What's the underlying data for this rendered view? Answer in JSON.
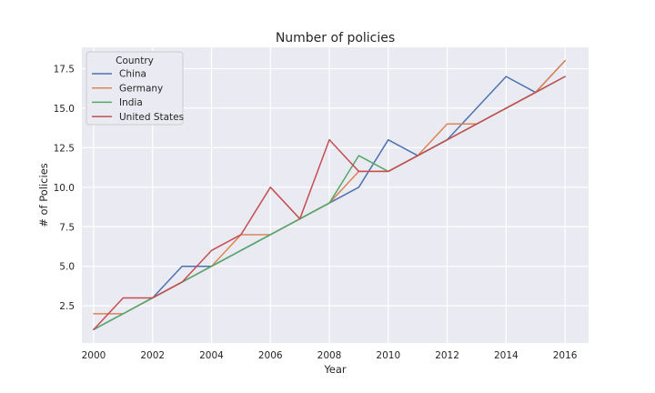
{
  "chart_data": {
    "type": "line",
    "title": "Number of policies",
    "xlabel": "Year",
    "ylabel": "# of Policies",
    "xlim": [
      1999.6,
      2016.8
    ],
    "ylim": [
      0.15,
      18.85
    ],
    "xticks": [
      2000,
      2002,
      2004,
      2006,
      2008,
      2010,
      2012,
      2014,
      2016
    ],
    "xtick_labels": [
      "2000",
      "2002",
      "2004",
      "2006",
      "2008",
      "2010",
      "2012",
      "2014",
      "2016"
    ],
    "yticks": [
      2.5,
      5.0,
      7.5,
      10.0,
      12.5,
      15.0,
      17.5
    ],
    "ytick_labels": [
      "2.5",
      "5.0",
      "7.5",
      "10.0",
      "12.5",
      "15.0",
      "17.5"
    ],
    "grid": true,
    "legend": {
      "title": "Country",
      "position": "top-left"
    },
    "x": [
      2000,
      2001,
      2002,
      2003,
      2004,
      2005,
      2006,
      2007,
      2008,
      2009,
      2010,
      2011,
      2012,
      2013,
      2014,
      2015,
      2016
    ],
    "series": [
      {
        "name": "China",
        "color": "#4c72b0",
        "values": [
          1,
          2,
          3,
          5,
          5,
          6,
          7,
          8,
          9,
          10,
          13,
          12,
          13,
          15,
          17,
          16,
          18
        ]
      },
      {
        "name": "Germany",
        "color": "#dd8452",
        "values": [
          2,
          2,
          3,
          4,
          5,
          7,
          7,
          8,
          9,
          11,
          11,
          12,
          14,
          14,
          15,
          16,
          18
        ]
      },
      {
        "name": "India",
        "color": "#55a868",
        "values": [
          1,
          2,
          3,
          4,
          5,
          6,
          7,
          8,
          9,
          12,
          11,
          12,
          13,
          14,
          15,
          16,
          17
        ]
      },
      {
        "name": "United States",
        "color": "#c44e52",
        "values": [
          1,
          3,
          3,
          4,
          6,
          7,
          10,
          8,
          13,
          11,
          11,
          12,
          13,
          14,
          15,
          16,
          17
        ]
      }
    ]
  }
}
